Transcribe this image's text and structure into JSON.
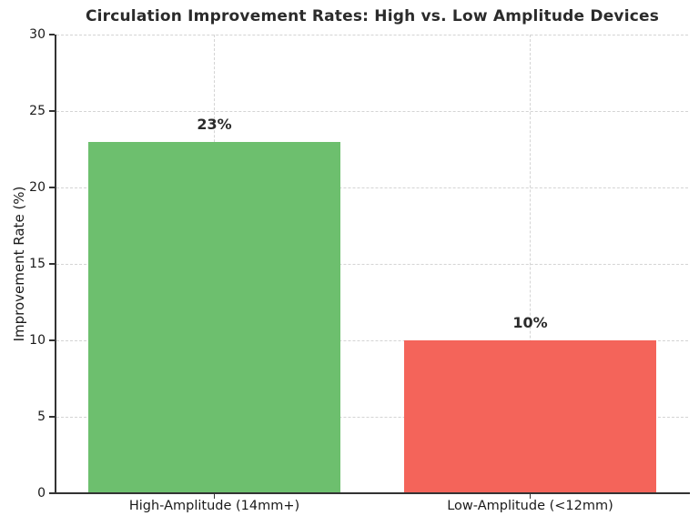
{
  "chart_data": {
    "type": "bar",
    "title": "Circulation Improvement Rates: High vs. Low Amplitude Devices",
    "xlabel": "",
    "ylabel": "Improvement Rate (%)",
    "categories": [
      "High-Amplitude (14mm+)",
      "Low-Amplitude (<12mm)"
    ],
    "values": [
      23,
      10
    ],
    "value_labels": [
      "23%",
      "10%"
    ],
    "bar_colors": [
      "#6dbf6e",
      "#f4645a"
    ],
    "ylim": [
      0,
      30
    ],
    "yticks": [
      0,
      5,
      10,
      15,
      20,
      25,
      30
    ],
    "bar_width_fraction": 0.8,
    "grid": {
      "visible": true,
      "style": "dashed",
      "axis": "both",
      "color": "#d4d4d4"
    },
    "colors": {
      "spine": "#333333",
      "title_text": "#2b2b2b",
      "tick_text": "#1a1a1a",
      "value_label_text": "#2b2b2b"
    }
  }
}
